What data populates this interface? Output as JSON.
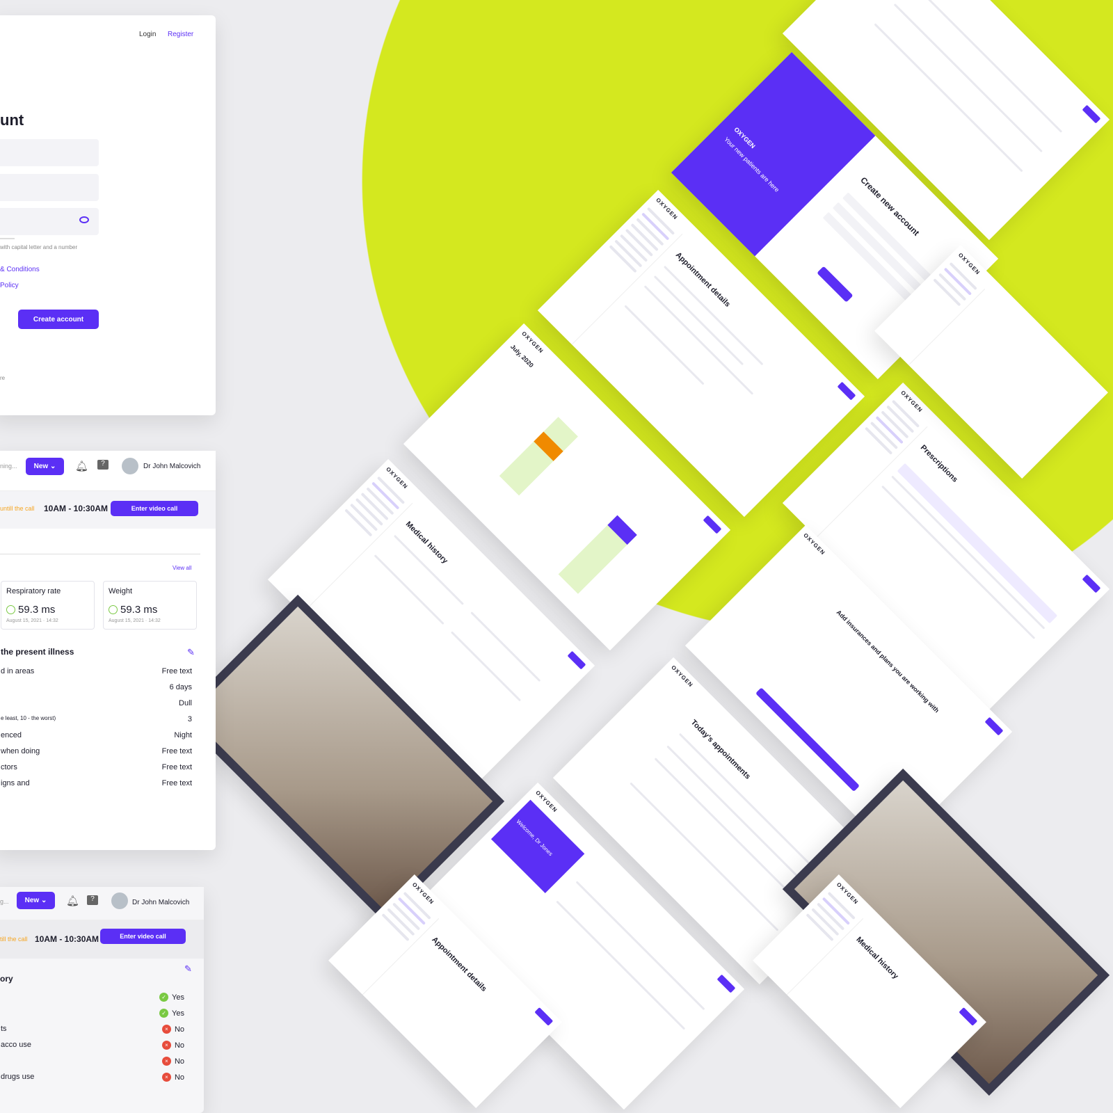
{
  "colors": {
    "accent": "#5b2ff5",
    "lime": "#d4e81f",
    "warning": "#f5a623",
    "success": "#7ac943",
    "error": "#e74c3c"
  },
  "register": {
    "nav": {
      "login": "Login",
      "register": "Register"
    },
    "title_partial": "unt",
    "password_hint": "with capital letter and a number",
    "terms_link": "& Conditions",
    "privacy_link": "Policy",
    "create_button": "Create account",
    "footer_partial": "re",
    "eye_icon": "eye-icon"
  },
  "header": {
    "search_partial": "ning...",
    "new_button": "New",
    "user_name": "Dr John Malcovich",
    "bell_icon": "bell-icon",
    "help_icon": "help-icon"
  },
  "call_band": {
    "countdown": "untill the call",
    "time": "10AM - 10:30AM",
    "enter_button": "Enter video call"
  },
  "vitals": {
    "view_all": "View all",
    "cards": [
      {
        "label": "Respiratory rate",
        "value": "59.3 ms",
        "date": "August 15, 2021 · 14:32"
      },
      {
        "label": "Weight",
        "value": "59.3 ms",
        "date": "August 15, 2021 · 14:32"
      }
    ]
  },
  "illness": {
    "title": "the present illness",
    "rows": [
      {
        "label": "d in areas",
        "value": "Free text"
      },
      {
        "label": "",
        "value": "6 days"
      },
      {
        "label": "",
        "value": "Dull"
      },
      {
        "label": "e least, 10 - the worst)",
        "value": "3"
      },
      {
        "label": "enced",
        "value": "Night"
      },
      {
        "label": "when doing",
        "value": "Free text"
      },
      {
        "label": "ctors",
        "value": "Free text"
      },
      {
        "label": "igns and",
        "value": "Free text"
      }
    ]
  },
  "card3": {
    "search_partial": "g...",
    "countdown": "till the call",
    "title_partial": "ory",
    "rows": [
      {
        "label": "",
        "value": "Yes",
        "status": "yes"
      },
      {
        "label": "",
        "value": "Yes",
        "status": "yes"
      },
      {
        "label": "ts",
        "value": "No",
        "status": "no"
      },
      {
        "label": "acco use",
        "value": "No",
        "status": "no"
      },
      {
        "label": "",
        "value": "No",
        "status": "no"
      },
      {
        "label": "drugs use",
        "value": "No",
        "status": "no"
      }
    ]
  },
  "screens": {
    "brand": "OXYGEN",
    "create_account": "Create new account",
    "new_patients": "Your new patients are here",
    "appointment_details": "Appointment details",
    "calendar_month": "July, 2020",
    "medical_history": "Medical history",
    "prescriptions": "Prescriptions",
    "insurances": "Add insurances and plans you are working with",
    "todays_appointments": "Today's appointments",
    "welcome": "Welcome, Dr Jones"
  }
}
